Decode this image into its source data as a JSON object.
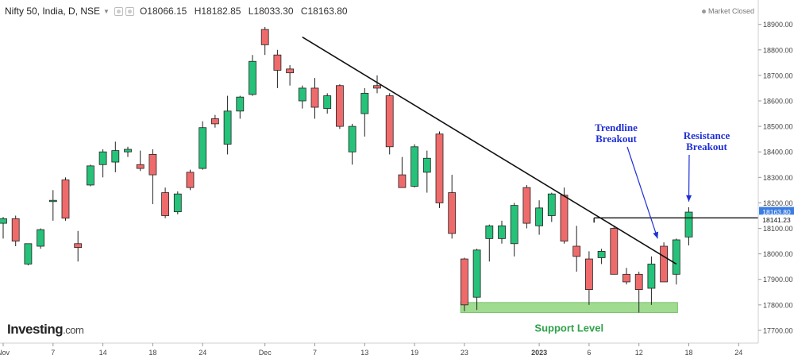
{
  "header": {
    "symbol": "Nifty 50, India, D, NSE",
    "open": "O18066.15",
    "high": "H18182.85",
    "low": "L18033.30",
    "close": "C18163.80"
  },
  "market_status": "Market Closed",
  "logo": {
    "brand": "Investing",
    "domain": ".com"
  },
  "colors": {
    "up": "#27c27a",
    "down": "#ef6b6b",
    "line": "#111111",
    "support_fill": "#9fdc90",
    "annotation": "#1f2fd6",
    "label_green": "#2ea34a",
    "price_flag": "#3b7de0"
  },
  "chart_data": {
    "type": "candlestick",
    "ylim": [
      17650,
      18980
    ],
    "y_ticks": [
      17700,
      17800,
      17900,
      18000,
      18100,
      18200,
      18300,
      18400,
      18500,
      18600,
      18700,
      18800,
      18900
    ],
    "x_ticks": [
      {
        "label": "Nov",
        "index": 0
      },
      {
        "label": "7",
        "index": 4
      },
      {
        "label": "14",
        "index": 8
      },
      {
        "label": "18",
        "index": 12
      },
      {
        "label": "24",
        "index": 16
      },
      {
        "label": "Dec",
        "index": 21
      },
      {
        "label": "7",
        "index": 25
      },
      {
        "label": "13",
        "index": 29
      },
      {
        "label": "19",
        "index": 33
      },
      {
        "label": "23",
        "index": 37
      },
      {
        "label": "2023",
        "index": 43
      },
      {
        "label": "6",
        "index": 47
      },
      {
        "label": "12",
        "index": 51
      },
      {
        "label": "18",
        "index": 55
      },
      {
        "label": "24",
        "index": 59
      }
    ],
    "candles": [
      {
        "o": 18120,
        "h": 18145,
        "l": 18060,
        "c": 18138
      },
      {
        "o": 18138,
        "h": 18150,
        "l": 18030,
        "c": 18050
      },
      {
        "o": 17960,
        "h": 18040,
        "l": 17955,
        "c": 18040
      },
      {
        "o": 18030,
        "h": 18100,
        "l": 18020,
        "c": 18095
      },
      {
        "o": 18205,
        "h": 18250,
        "l": 18130,
        "c": 18210
      },
      {
        "o": 18290,
        "h": 18300,
        "l": 18130,
        "c": 18140
      },
      {
        "o": 18040,
        "h": 18090,
        "l": 17970,
        "c": 18025
      },
      {
        "o": 18270,
        "h": 18350,
        "l": 18265,
        "c": 18345
      },
      {
        "o": 18350,
        "h": 18410,
        "l": 18300,
        "c": 18400
      },
      {
        "o": 18360,
        "h": 18440,
        "l": 18320,
        "c": 18405
      },
      {
        "o": 18400,
        "h": 18420,
        "l": 18380,
        "c": 18410
      },
      {
        "o": 18350,
        "h": 18405,
        "l": 18325,
        "c": 18335
      },
      {
        "o": 18390,
        "h": 18410,
        "l": 18195,
        "c": 18310
      },
      {
        "o": 18240,
        "h": 18260,
        "l": 18140,
        "c": 18150
      },
      {
        "o": 18165,
        "h": 18245,
        "l": 18155,
        "c": 18235
      },
      {
        "o": 18320,
        "h": 18330,
        "l": 18250,
        "c": 18260
      },
      {
        "o": 18335,
        "h": 18520,
        "l": 18330,
        "c": 18495
      },
      {
        "o": 18530,
        "h": 18545,
        "l": 18495,
        "c": 18510
      },
      {
        "o": 18430,
        "h": 18620,
        "l": 18390,
        "c": 18560
      },
      {
        "o": 18560,
        "h": 18620,
        "l": 18530,
        "c": 18615
      },
      {
        "o": 18625,
        "h": 18780,
        "l": 18620,
        "c": 18755
      },
      {
        "o": 18880,
        "h": 18890,
        "l": 18780,
        "c": 18820
      },
      {
        "o": 18780,
        "h": 18800,
        "l": 18650,
        "c": 18720
      },
      {
        "o": 18725,
        "h": 18740,
        "l": 18660,
        "c": 18710
      },
      {
        "o": 18600,
        "h": 18660,
        "l": 18570,
        "c": 18650
      },
      {
        "o": 18650,
        "h": 18690,
        "l": 18530,
        "c": 18575
      },
      {
        "o": 18570,
        "h": 18630,
        "l": 18550,
        "c": 18620
      },
      {
        "o": 18660,
        "h": 18665,
        "l": 18490,
        "c": 18500
      },
      {
        "o": 18400,
        "h": 18510,
        "l": 18350,
        "c": 18500
      },
      {
        "o": 18550,
        "h": 18650,
        "l": 18460,
        "c": 18630
      },
      {
        "o": 18660,
        "h": 18700,
        "l": 18630,
        "c": 18650
      },
      {
        "o": 18620,
        "h": 18630,
        "l": 18390,
        "c": 18420
      },
      {
        "o": 18310,
        "h": 18380,
        "l": 18260,
        "c": 18260
      },
      {
        "o": 18265,
        "h": 18430,
        "l": 18260,
        "c": 18420
      },
      {
        "o": 18320,
        "h": 18405,
        "l": 18240,
        "c": 18375
      },
      {
        "o": 18470,
        "h": 18480,
        "l": 18180,
        "c": 18200
      },
      {
        "o": 18240,
        "h": 18310,
        "l": 18060,
        "c": 18080
      },
      {
        "o": 17980,
        "h": 17985,
        "l": 17775,
        "c": 17800
      },
      {
        "o": 17830,
        "h": 18020,
        "l": 17780,
        "c": 18015
      },
      {
        "o": 18060,
        "h": 18115,
        "l": 17970,
        "c": 18110
      },
      {
        "o": 18060,
        "h": 18130,
        "l": 18040,
        "c": 18110
      },
      {
        "o": 18040,
        "h": 18200,
        "l": 17990,
        "c": 18190
      },
      {
        "o": 18260,
        "h": 18270,
        "l": 18100,
        "c": 18120
      },
      {
        "o": 18110,
        "h": 18210,
        "l": 18075,
        "c": 18180
      },
      {
        "o": 18150,
        "h": 18240,
        "l": 18125,
        "c": 18235
      },
      {
        "o": 18230,
        "h": 18260,
        "l": 18040,
        "c": 18050
      },
      {
        "o": 18030,
        "h": 18110,
        "l": 17930,
        "c": 17990
      },
      {
        "o": 17980,
        "h": 18010,
        "l": 17800,
        "c": 17860
      },
      {
        "o": 17985,
        "h": 18020,
        "l": 17960,
        "c": 18010
      },
      {
        "o": 18100,
        "h": 18110,
        "l": 17930,
        "c": 17920
      },
      {
        "o": 17920,
        "h": 17945,
        "l": 17880,
        "c": 17890
      },
      {
        "o": 17920,
        "h": 17930,
        "l": 17770,
        "c": 17860
      },
      {
        "o": 17865,
        "h": 17990,
        "l": 17800,
        "c": 17960
      },
      {
        "o": 18030,
        "h": 18045,
        "l": 17890,
        "c": 17890
      },
      {
        "o": 17920,
        "h": 18060,
        "l": 17880,
        "c": 18055
      },
      {
        "o": 18066.15,
        "h": 18182.85,
        "l": 18033.3,
        "c": 18163.8
      }
    ],
    "trendline": {
      "start": {
        "index": 24,
        "value": 18850
      },
      "end": {
        "index": 54,
        "value": 17960
      }
    },
    "resistance": {
      "start_index": 47.4,
      "value": 18141.23
    },
    "support_zone": {
      "start_index": 36.7,
      "end_index": 54.1,
      "low": 17770,
      "high": 17800,
      "label": "Support Level"
    },
    "annotations": [
      {
        "label": "Trendline",
        "label2": "Breakout",
        "target_index": 52.5,
        "target_value": 18060
      },
      {
        "label": "Resistance",
        "label2": "Breakout",
        "target_index": 55,
        "target_value": 18205
      }
    ],
    "price_labels": [
      {
        "value": 18163.8,
        "text": "18163.80",
        "style": "flag"
      },
      {
        "value": 18141.23,
        "text": "18141.23",
        "style": "plain"
      }
    ]
  }
}
